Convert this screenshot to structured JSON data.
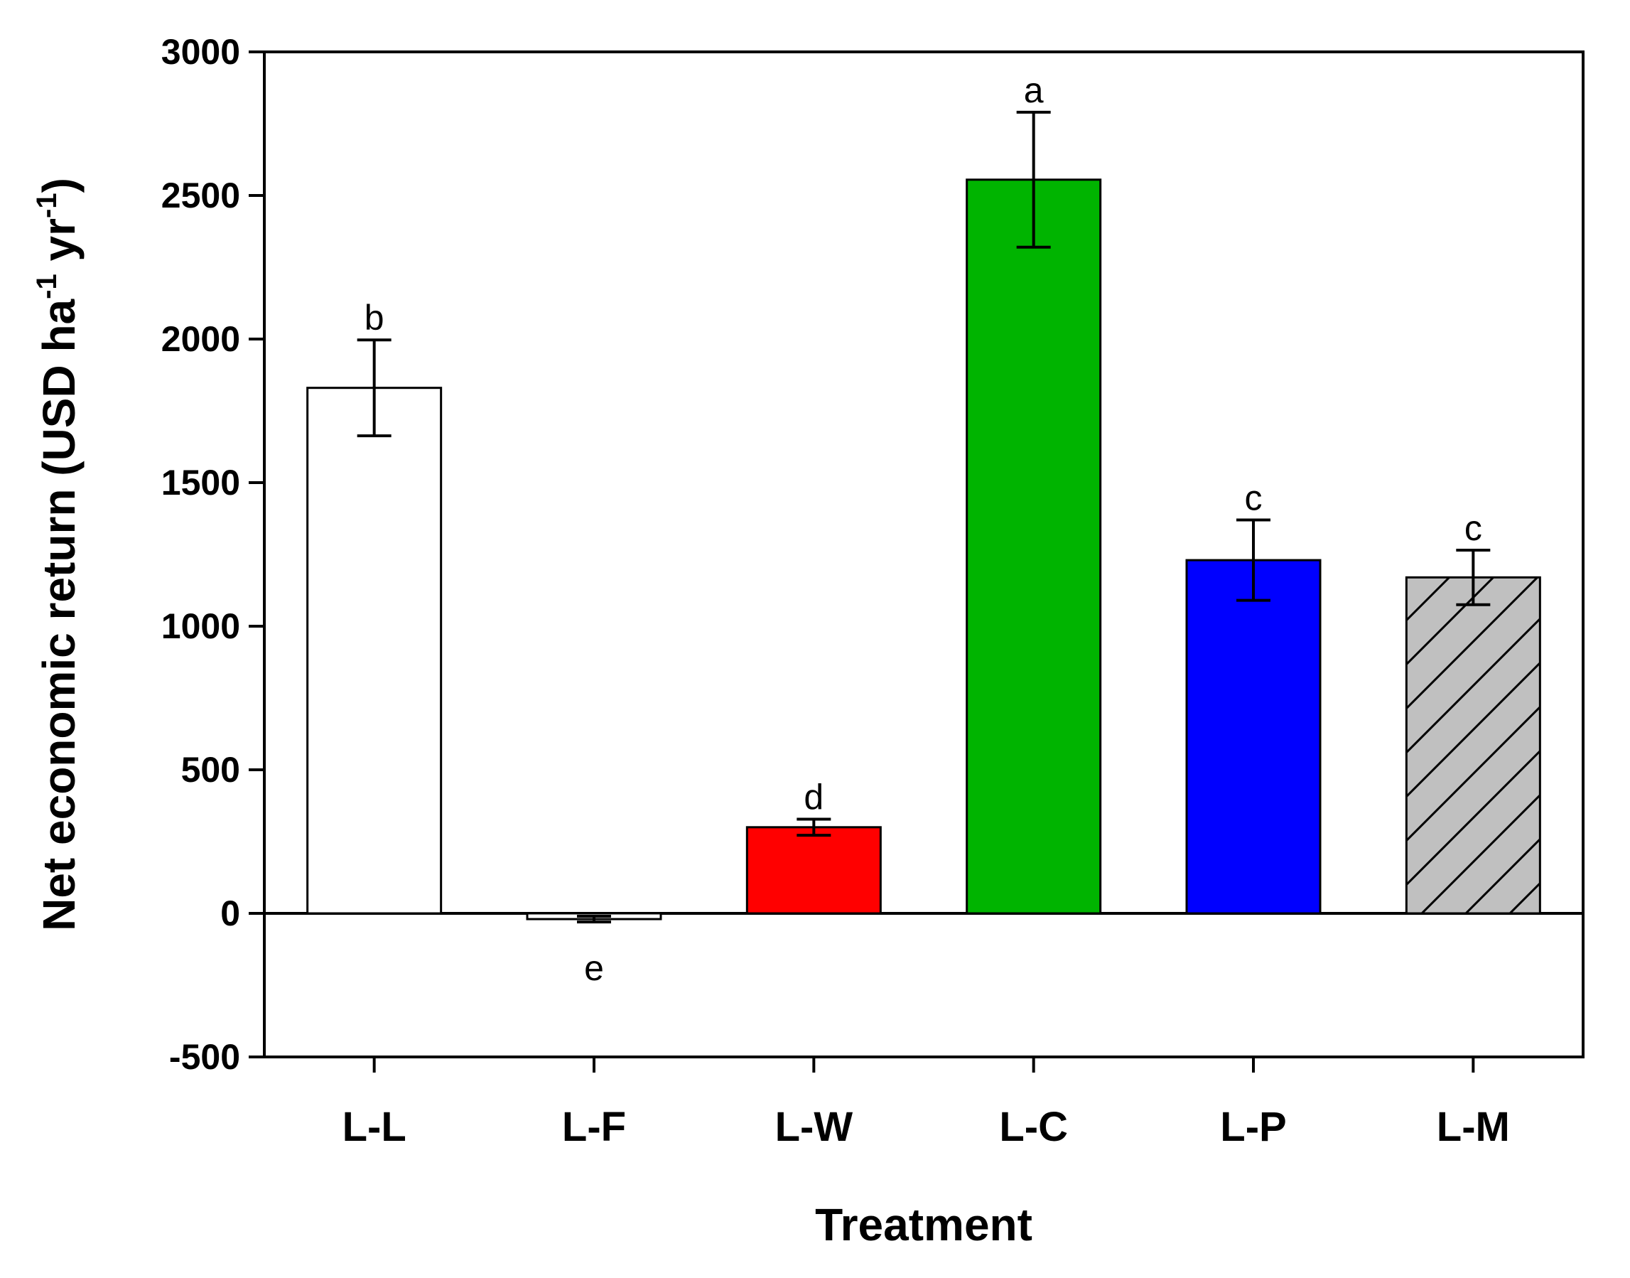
{
  "chart_data": {
    "type": "bar",
    "title": "",
    "xlabel": "Treatment",
    "ylabel": {
      "main": "Net economic return (USD ha",
      "exp1": "-1",
      "mid": " yr",
      "exp2": "-1",
      "close": ")"
    },
    "ylim": [
      -500,
      3000
    ],
    "yticks": [
      -500,
      0,
      500,
      1000,
      1500,
      2000,
      2500,
      3000
    ],
    "categories": [
      "L-L",
      "L-F",
      "L-W",
      "L-C",
      "L-P",
      "L-M"
    ],
    "values": [
      1830,
      -20,
      300,
      2555,
      1230,
      1170
    ],
    "errors": [
      167,
      10,
      28,
      235,
      140,
      95
    ],
    "significance": [
      "b",
      "e",
      "d",
      "a",
      "c",
      "c"
    ],
    "colors": [
      "#ffffff",
      "#ffffff",
      "#ff0000",
      "#00b400",
      "#0000ff",
      "#c0c0c0"
    ],
    "hatched": [
      false,
      false,
      false,
      false,
      false,
      true
    ]
  }
}
